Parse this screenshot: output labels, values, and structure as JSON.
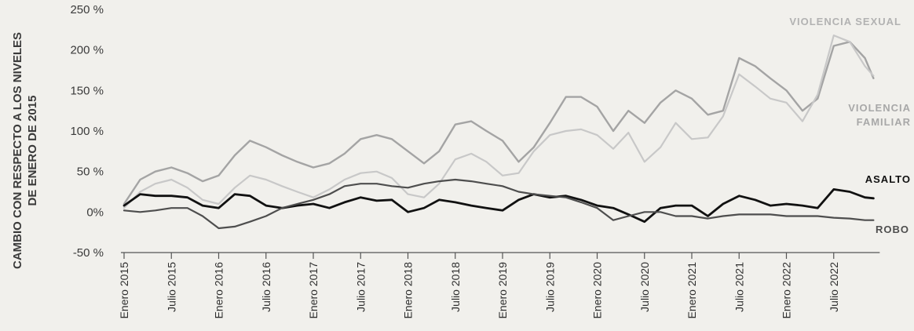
{
  "chart_data": {
    "type": "line",
    "ylabel_line1": "CAMBIO CON RESPECTO A LOS NIVELES",
    "ylabel_line2": "DE ENERO DE 2015",
    "ylim": [
      -50,
      250
    ],
    "yticks": [
      250,
      200,
      150,
      100,
      50,
      0,
      -50
    ],
    "ytick_labels": [
      "250 %",
      "200 %",
      "150 %",
      "100 %",
      "50 %",
      "0%",
      "-50 %"
    ],
    "xlim": [
      2015.0,
      2023.0
    ],
    "xticks": [
      2015.0,
      2015.5,
      2016.0,
      2016.5,
      2017.0,
      2017.5,
      2018.0,
      2018.5,
      2019.0,
      2019.5,
      2020.0,
      2020.5,
      2021.0,
      2021.5,
      2022.0,
      2022.5
    ],
    "xtick_labels": [
      "Enero 2015",
      "Julio 2015",
      "Enero 2016",
      "Julio 2016",
      "Enero 2017",
      "Julio 2017",
      "Enero 2018",
      "Julio 2018",
      "Enero 2019",
      "Julio 2019",
      "Enero 2020",
      "Julio 2020",
      "Enero 2021",
      "Julio 2021",
      "Enero 2022",
      "Julio 2022"
    ],
    "grid": false,
    "series": [
      {
        "name": "VIOLENCIA SEXUAL",
        "color": "#a4a4a4",
        "x": [
          2015.0,
          2015.17,
          2015.33,
          2015.5,
          2015.67,
          2015.83,
          2016.0,
          2016.17,
          2016.33,
          2016.5,
          2016.67,
          2016.83,
          2017.0,
          2017.17,
          2017.33,
          2017.5,
          2017.67,
          2017.83,
          2018.0,
          2018.17,
          2018.33,
          2018.5,
          2018.67,
          2018.83,
          2019.0,
          2019.17,
          2019.33,
          2019.5,
          2019.67,
          2019.83,
          2020.0,
          2020.17,
          2020.33,
          2020.5,
          2020.67,
          2020.83,
          2021.0,
          2021.17,
          2021.33,
          2021.5,
          2021.67,
          2021.83,
          2022.0,
          2022.17,
          2022.33,
          2022.5,
          2022.67,
          2022.83,
          2022.92
        ],
        "y": [
          10,
          40,
          50,
          55,
          48,
          38,
          45,
          70,
          88,
          80,
          70,
          62,
          55,
          60,
          72,
          90,
          95,
          90,
          75,
          60,
          75,
          108,
          112,
          100,
          88,
          62,
          80,
          110,
          142,
          142,
          130,
          100,
          125,
          110,
          135,
          150,
          140,
          120,
          125,
          190,
          180,
          165,
          150,
          125,
          140,
          205,
          210,
          190,
          165
        ]
      },
      {
        "name": "VIOLENCIA FAMILIAR",
        "color": "#c8c8c8",
        "x": [
          2015.0,
          2015.17,
          2015.33,
          2015.5,
          2015.67,
          2015.83,
          2016.0,
          2016.17,
          2016.33,
          2016.5,
          2016.67,
          2016.83,
          2017.0,
          2017.17,
          2017.33,
          2017.5,
          2017.67,
          2017.83,
          2018.0,
          2018.17,
          2018.33,
          2018.5,
          2018.67,
          2018.83,
          2019.0,
          2019.17,
          2019.33,
          2019.5,
          2019.67,
          2019.83,
          2020.0,
          2020.17,
          2020.33,
          2020.5,
          2020.67,
          2020.83,
          2021.0,
          2021.17,
          2021.33,
          2021.5,
          2021.67,
          2021.83,
          2022.0,
          2022.17,
          2022.33,
          2022.5,
          2022.67,
          2022.83,
          2022.92
        ],
        "y": [
          5,
          25,
          35,
          40,
          30,
          15,
          10,
          30,
          45,
          40,
          32,
          25,
          18,
          28,
          40,
          48,
          50,
          42,
          22,
          18,
          35,
          65,
          72,
          62,
          45,
          48,
          75,
          95,
          100,
          102,
          95,
          78,
          98,
          62,
          80,
          110,
          90,
          92,
          118,
          170,
          155,
          140,
          135,
          112,
          145,
          218,
          210,
          180,
          168
        ]
      },
      {
        "name": "ASALTO",
        "color": "#111111",
        "x": [
          2015.0,
          2015.17,
          2015.33,
          2015.5,
          2015.67,
          2015.83,
          2016.0,
          2016.17,
          2016.33,
          2016.5,
          2016.67,
          2016.83,
          2017.0,
          2017.17,
          2017.33,
          2017.5,
          2017.67,
          2017.83,
          2018.0,
          2018.17,
          2018.33,
          2018.5,
          2018.67,
          2018.83,
          2019.0,
          2019.17,
          2019.33,
          2019.5,
          2019.67,
          2019.83,
          2020.0,
          2020.17,
          2020.33,
          2020.5,
          2020.67,
          2020.83,
          2021.0,
          2021.17,
          2021.33,
          2021.5,
          2021.67,
          2021.83,
          2022.0,
          2022.17,
          2022.33,
          2022.5,
          2022.67,
          2022.83,
          2022.92
        ],
        "y": [
          8,
          22,
          20,
          20,
          18,
          8,
          5,
          22,
          20,
          8,
          5,
          8,
          10,
          5,
          12,
          18,
          14,
          15,
          0,
          5,
          15,
          12,
          8,
          5,
          2,
          15,
          22,
          18,
          20,
          15,
          8,
          5,
          -3,
          -12,
          5,
          8,
          8,
          -5,
          10,
          20,
          15,
          8,
          10,
          8,
          5,
          28,
          25,
          18,
          17
        ]
      },
      {
        "name": "ROBO",
        "color": "#4e4e4e",
        "x": [
          2015.0,
          2015.17,
          2015.33,
          2015.5,
          2015.67,
          2015.83,
          2016.0,
          2016.17,
          2016.33,
          2016.5,
          2016.67,
          2016.83,
          2017.0,
          2017.17,
          2017.33,
          2017.5,
          2017.67,
          2017.83,
          2018.0,
          2018.17,
          2018.33,
          2018.5,
          2018.67,
          2018.83,
          2019.0,
          2019.17,
          2019.33,
          2019.5,
          2019.67,
          2019.83,
          2020.0,
          2020.17,
          2020.33,
          2020.5,
          2020.67,
          2020.83,
          2021.0,
          2021.17,
          2021.33,
          2021.5,
          2021.67,
          2021.83,
          2022.0,
          2022.17,
          2022.33,
          2022.5,
          2022.67,
          2022.83,
          2022.92
        ],
        "y": [
          2,
          0,
          2,
          5,
          5,
          -5,
          -20,
          -18,
          -12,
          -5,
          5,
          10,
          15,
          22,
          32,
          35,
          35,
          32,
          30,
          35,
          38,
          40,
          38,
          35,
          32,
          25,
          22,
          20,
          18,
          12,
          5,
          -10,
          -5,
          0,
          0,
          -5,
          -5,
          -8,
          -5,
          -3,
          -3,
          -3,
          -5,
          -5,
          -5,
          -7,
          -8,
          -10,
          -10
        ]
      }
    ],
    "annotations": [
      {
        "text": "VIOLENCIA SEXUAL",
        "series": "VIOLENCIA SEXUAL",
        "color": "#b2b2b2"
      },
      {
        "text": "VIOLENCIA",
        "series": "VIOLENCIA FAMILIAR",
        "color": "#a8a8a8"
      },
      {
        "text": "FAMILIAR",
        "series": "VIOLENCIA FAMILIAR",
        "color": "#a8a8a8"
      },
      {
        "text": "ASALTO",
        "series": "ASALTO",
        "color": "#111111"
      },
      {
        "text": "ROBO",
        "series": "ROBO",
        "color": "#4e4e4e"
      }
    ]
  }
}
